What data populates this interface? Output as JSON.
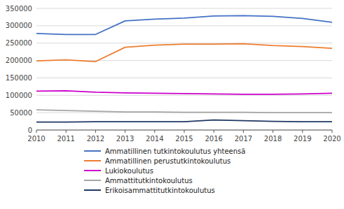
{
  "chart_data": {
    "type": "line",
    "x": [
      2010,
      2011,
      2012,
      2013,
      2014,
      2015,
      2016,
      2017,
      2018,
      2019,
      2020
    ],
    "series": [
      {
        "name": "Ammatillinen tutkintokoulutus yhteensä",
        "color": "#4472C4",
        "values": [
          278000,
          275000,
          275000,
          314000,
          319000,
          322000,
          328000,
          329000,
          327000,
          321000,
          310000
        ]
      },
      {
        "name": "Ammatillinen perustutkintokoulutus",
        "color": "#ED7D31",
        "values": [
          199000,
          202000,
          197000,
          238000,
          244000,
          247000,
          247000,
          248000,
          243000,
          240000,
          235000
        ]
      },
      {
        "name": "Lukiokoulutus",
        "color": "#CC00CC",
        "values": [
          112000,
          113000,
          109000,
          107000,
          106000,
          105000,
          104000,
          103000,
          103000,
          104000,
          106000
        ]
      },
      {
        "name": "Ammattitutkintokoulutus",
        "color": "#A5A5A5",
        "values": [
          58000,
          56000,
          54000,
          52000,
          52000,
          51000,
          51000,
          51000,
          50000,
          50000,
          50000
        ]
      },
      {
        "name": "Erikoisammattitutkintokoulutus",
        "color": "#1F3864",
        "values": [
          23000,
          23000,
          24000,
          24000,
          24000,
          24000,
          29000,
          27000,
          25000,
          24000,
          24000
        ]
      }
    ],
    "xlim": [
      2010,
      2020
    ],
    "xticks": [
      2010,
      2011,
      2012,
      2013,
      2014,
      2015,
      2016,
      2017,
      2018,
      2019,
      2020
    ],
    "ylim": [
      0,
      350000
    ],
    "yticks": [
      0,
      50000,
      100000,
      150000,
      200000,
      250000,
      300000,
      350000
    ],
    "grid": true,
    "legend": "bottom"
  }
}
